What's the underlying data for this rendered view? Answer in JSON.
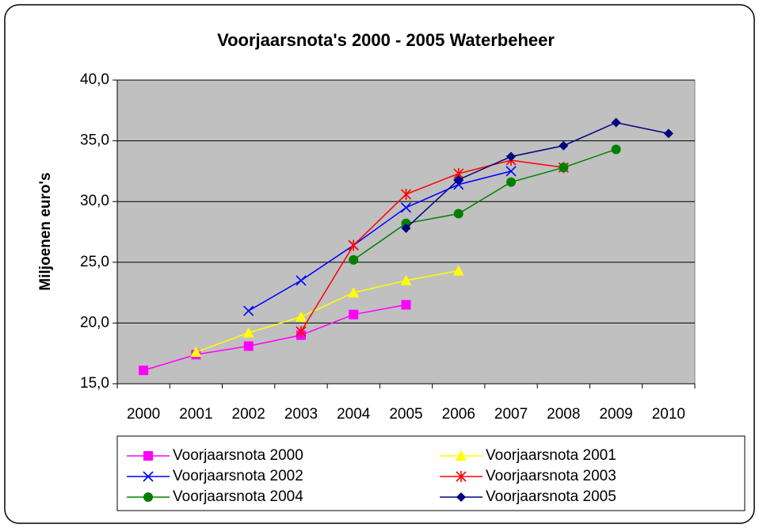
{
  "chart_data": {
    "type": "line",
    "title": "Voorjaarsnota's 2000 - 2005 Waterbeheer",
    "y_label": "Miljoenen euro's",
    "categories": [
      "2000",
      "2001",
      "2002",
      "2003",
      "2004",
      "2005",
      "2006",
      "2007",
      "2008",
      "2009",
      "2010"
    ],
    "series": [
      {
        "name": "Voorjaarsnota 2000",
        "color": "#ff00ff",
        "marker": "square",
        "values": [
          16.1,
          17.4,
          18.1,
          19.0,
          20.7,
          21.5,
          null,
          null,
          null,
          null,
          null
        ]
      },
      {
        "name": "Voorjaarsnota 2001",
        "color": "#ffff00",
        "marker": "triangle",
        "values": [
          null,
          17.6,
          19.2,
          20.5,
          22.5,
          23.5,
          24.3,
          null,
          null,
          null,
          null
        ]
      },
      {
        "name": "Voorjaarsnota 2002",
        "color": "#0000ff",
        "marker": "x",
        "values": [
          null,
          null,
          21.0,
          23.5,
          26.4,
          29.5,
          31.4,
          32.5,
          null,
          null,
          null
        ]
      },
      {
        "name": "Voorjaarsnota 2003",
        "color": "#ff0000",
        "marker": "star",
        "values": [
          null,
          null,
          null,
          19.3,
          26.4,
          30.6,
          32.3,
          33.4,
          32.8,
          null,
          null
        ]
      },
      {
        "name": "Voorjaarsnota 2004",
        "color": "#008000",
        "marker": "circle",
        "values": [
          null,
          null,
          null,
          null,
          25.2,
          28.2,
          29.0,
          31.6,
          32.8,
          34.3,
          null
        ]
      },
      {
        "name": "Voorjaarsnota 2005",
        "color": "#000080",
        "marker": "diamond",
        "values": [
          null,
          null,
          null,
          null,
          null,
          27.8,
          31.8,
          33.7,
          34.6,
          36.5,
          35.6
        ]
      }
    ],
    "ylim": [
      15,
      40
    ],
    "yticks": [
      {
        "value": 15,
        "label": "15,0"
      },
      {
        "value": 20,
        "label": "20,0"
      },
      {
        "value": 25,
        "label": "25,0"
      },
      {
        "value": 30,
        "label": "30,0"
      },
      {
        "value": 35,
        "label": "35,0"
      },
      {
        "value": 40,
        "label": "40,0"
      }
    ],
    "grid": true,
    "legend": "bottom",
    "plot_background": "#c0c0c0"
  }
}
